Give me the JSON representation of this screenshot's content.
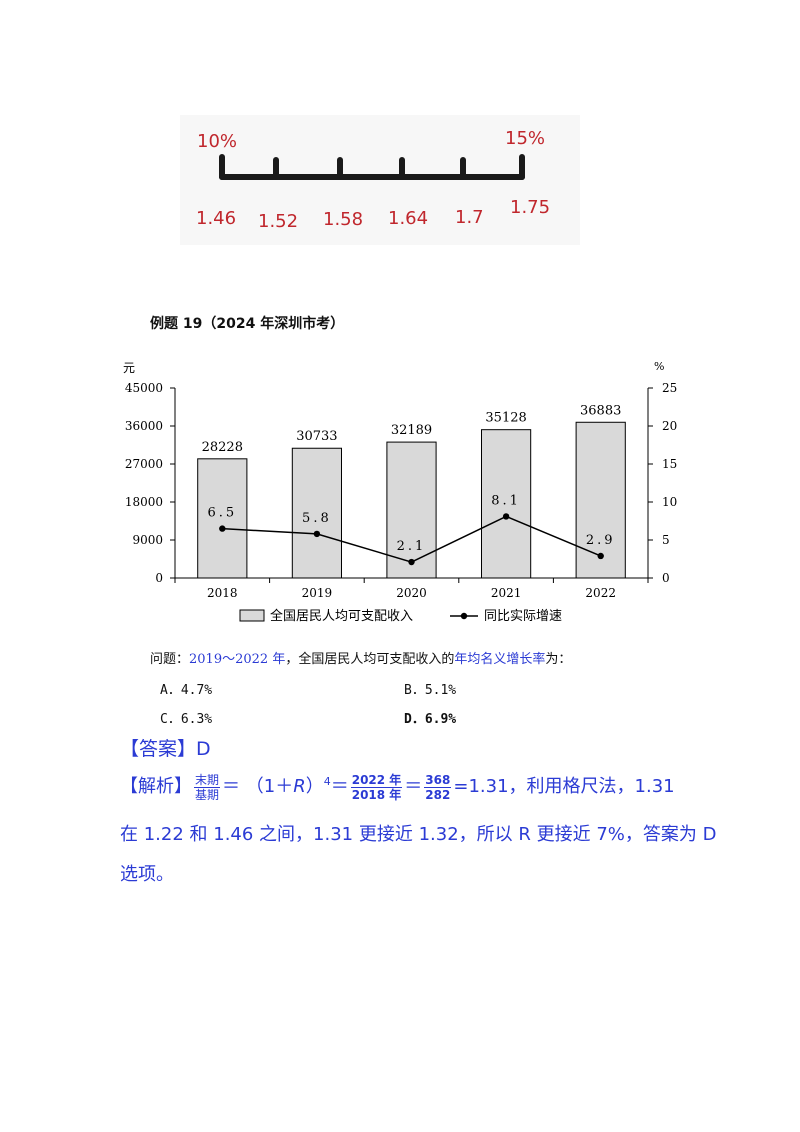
{
  "scale": {
    "left_label": "10%",
    "right_label": "15%",
    "ticks": [
      "1.46",
      "1.52",
      "1.58",
      "1.64",
      "1.7",
      "1.75"
    ]
  },
  "example_title": "例题 19（2024 年深圳市考）",
  "chart_data": {
    "type": "bar",
    "categories": [
      "2018",
      "2019",
      "2020",
      "2021",
      "2022"
    ],
    "series": [
      {
        "name": "全国居民人均可支配收入",
        "type": "bar",
        "axis": "left",
        "values": [
          28228,
          30733,
          32189,
          35128,
          36883
        ],
        "labels": [
          "28228",
          "30733",
          "32189",
          "35128",
          "36883"
        ]
      },
      {
        "name": "同比实际增速",
        "type": "line",
        "axis": "right",
        "values": [
          6.5,
          5.8,
          2.1,
          8.1,
          2.9
        ],
        "labels": [
          "6.5",
          "5.8",
          "2.1",
          "8.1",
          "2.9"
        ]
      }
    ],
    "y_left": {
      "unit": "元",
      "ticks": [
        "0",
        "9000",
        "18000",
        "27000",
        "36000",
        "45000"
      ],
      "ylim": [
        0,
        45000
      ]
    },
    "y_right": {
      "unit": "%",
      "ticks": [
        "0",
        "5",
        "10",
        "15",
        "20",
        "25"
      ],
      "ylim": [
        0,
        25
      ]
    },
    "legend_position": "bottom",
    "grid": false,
    "colors": {
      "bar_fill": "#d9d9d9",
      "line": "#000000"
    }
  },
  "question": {
    "prefix": "问题：",
    "range": "2019～2022 年",
    "middle": "，全国居民人均可支配收入的",
    "target": "年均名义增长率",
    "suffix": "为：",
    "options": [
      "A．4.7%",
      "B．5.1%",
      "C．6.3%",
      "D．6.9%"
    ]
  },
  "answer": "【答案】D",
  "explanation": {
    "tag": "【解析】",
    "frac1_num": "末期",
    "frac1_den": "基期",
    "eq1": "＝ （1＋",
    "r": "R",
    "close": "）",
    "power": "4",
    "eq2": "＝",
    "frac2_num": "2022 年",
    "frac2_den": "2018 年",
    "eq3": "＝",
    "frac3_num": "368",
    "frac3_den": "282",
    "line1_end": "=1.31，利用格尺法，1.31",
    "line2": "在 1.22 和 1.46 之间，1.31 更接近 1.32，所以 R 更接近 7%，答案为 D",
    "line3": "选项。"
  }
}
